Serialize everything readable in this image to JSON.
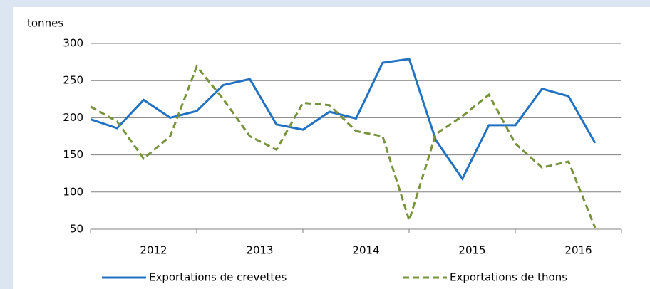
{
  "chart_data": {
    "type": "line",
    "y_axis_label": "tonnes",
    "categories": [
      "2012",
      null,
      null,
      null,
      "2013",
      null,
      null,
      null,
      "2014",
      null,
      null,
      null,
      "2015",
      null,
      null,
      null,
      "2016",
      null,
      null,
      null
    ],
    "series": [
      {
        "name": "Exportations de crevettes",
        "color": "#2272c3",
        "dash": "solid",
        "values": [
          198,
          186,
          224,
          200,
          209,
          244,
          252,
          191,
          184,
          208,
          199,
          274,
          279,
          170,
          118,
          190,
          190,
          239,
          229,
          166
        ]
      },
      {
        "name": "Exportations de thons",
        "color": "#77933c",
        "dash": "dashed",
        "values": [
          215,
          195,
          145,
          175,
          269,
          225,
          175,
          157,
          220,
          217,
          182,
          175,
          62,
          178,
          202,
          231,
          165,
          133,
          141,
          52
        ]
      }
    ],
    "ylim": [
      50,
      300
    ],
    "yticks": [
      50,
      100,
      150,
      200,
      250,
      300
    ],
    "grid": true,
    "legend": "bottom"
  }
}
